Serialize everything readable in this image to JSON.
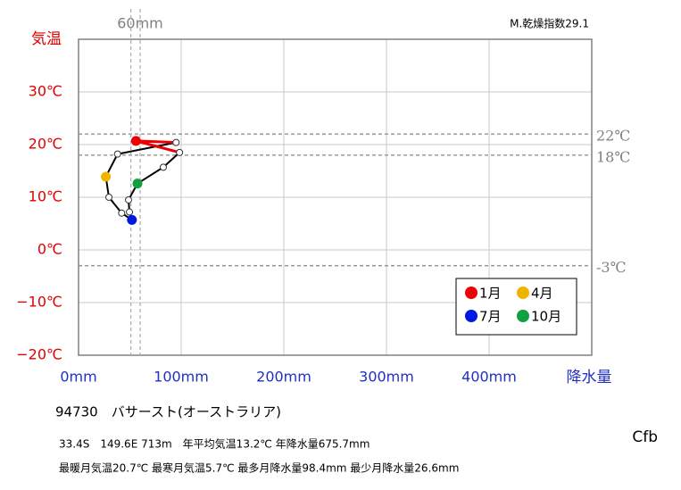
{
  "chart_data": {
    "type": "climograph",
    "title": "94730　バサースト(オーストラリア)",
    "y_label": "気温",
    "x_label": "降水量",
    "dryness_index": "M.乾燥指数29.1",
    "koppen": "Cfb",
    "info_lines": [
      "33.4S　149.6E 713m　年平均気温13.2℃ 年降水量675.7mm",
      "最暖月気温20.7℃ 最寒月気温5.7℃ 最多月降水量98.4mm 最少月降水量26.6mm"
    ],
    "categories": [
      "1月",
      null,
      null,
      "4月",
      null,
      null,
      "7月",
      null,
      null,
      "10月",
      null,
      null
    ],
    "x": [
      56,
      95,
      38,
      26.6,
      29.6,
      42,
      52,
      49.6,
      48.7,
      57.4,
      82.6,
      98.4
    ],
    "values": [
      20.7,
      20.4,
      18.2,
      13.9,
      10,
      7,
      5.7,
      7.2,
      9.5,
      12.6,
      15.7,
      18.5
    ],
    "marker_colors": [
      "#ee0000",
      null,
      null,
      "#f0b400",
      null,
      null,
      "#0018e0",
      null,
      null,
      "#10a040",
      null,
      null
    ],
    "line_color": "#000000",
    "summer_color": "#ee0000",
    "xlim": [
      0,
      500
    ],
    "ylim": [
      -20,
      40
    ],
    "xticks": [
      {
        "value": 0,
        "label": "0mm"
      },
      {
        "value": 100,
        "label": "100mm"
      },
      {
        "value": 200,
        "label": "200mm"
      },
      {
        "value": 300,
        "label": "300mm"
      },
      {
        "value": 400,
        "label": "400mm"
      }
    ],
    "yticks": [
      {
        "value": -20,
        "label": "−20℃"
      },
      {
        "value": -10,
        "label": "−10℃"
      },
      {
        "value": 0,
        "label": "0℃"
      },
      {
        "value": 10,
        "label": "10℃"
      },
      {
        "value": 20,
        "label": "20℃"
      },
      {
        "value": 30,
        "label": "30℃"
      }
    ],
    "hlines": [
      {
        "value": 22,
        "label": "22℃"
      },
      {
        "value": 18,
        "label": "18℃"
      },
      {
        "value": -3,
        "label": "-3℃"
      }
    ],
    "vlines": [
      {
        "value": 60,
        "label": "60mm"
      },
      {
        "value": 51
      }
    ],
    "grid": true
  }
}
